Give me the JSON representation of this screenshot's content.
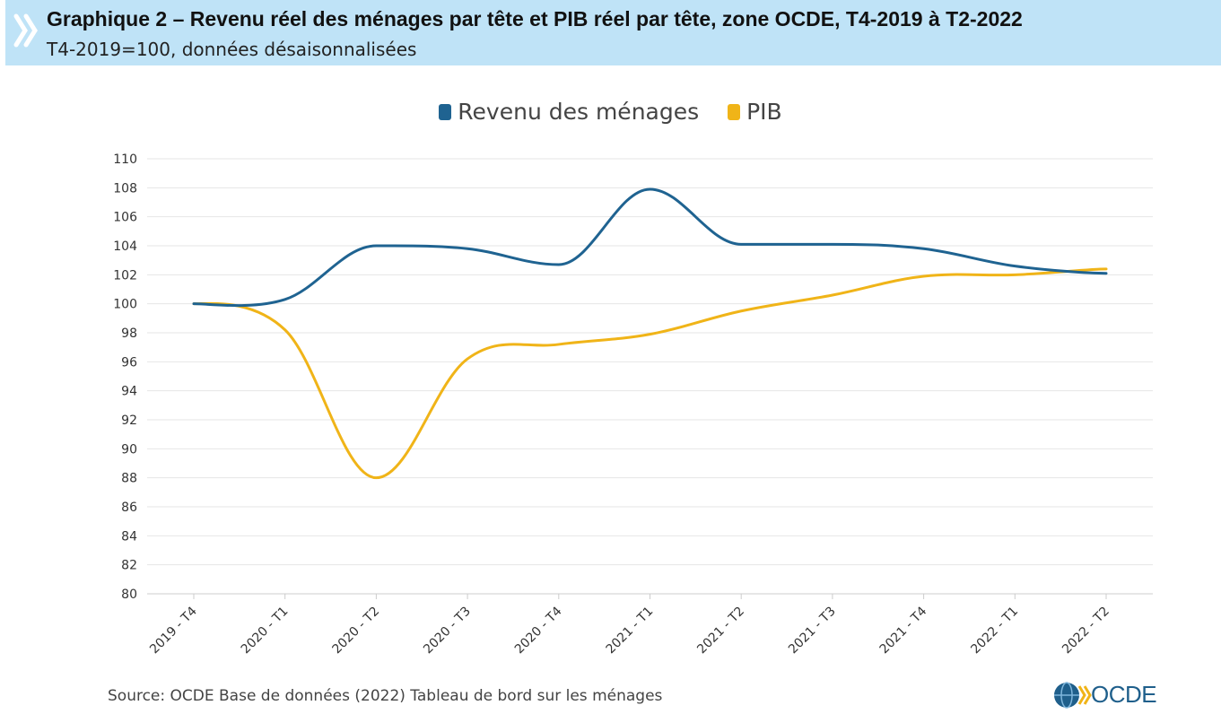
{
  "header": {
    "title": "Graphique 2 – Revenu réel des ménages par tête et PIB réel par tête, zone OCDE, T4-2019 à T2-2022",
    "subtitle": "T4-2019=100, données désaisonnalisées"
  },
  "source": "Source: OCDE Base de données (2022) Tableau de bord sur les ménages",
  "logo": {
    "text": "OCDE",
    "icon": "globe-icon"
  },
  "colors": {
    "header_bg": "#bfe3f7",
    "revenu": "#1f6391",
    "pib": "#f0b418",
    "grid": "#e6e6e6"
  },
  "chart_data": {
    "type": "line",
    "title": "",
    "xlabel": "",
    "ylabel": "",
    "ylim": [
      80,
      110
    ],
    "yticks": [
      80,
      82,
      84,
      86,
      88,
      90,
      92,
      94,
      96,
      98,
      100,
      102,
      104,
      106,
      108,
      110
    ],
    "grid": true,
    "legend_position": "top-center",
    "categories": [
      "2019 - T4",
      "2020 - T1",
      "2020 - T2",
      "2020 - T3",
      "2020 - T4",
      "2021 - T1",
      "2021 - T2",
      "2021 - T3",
      "2021 - T4",
      "2022 - T1",
      "2022 - T2"
    ],
    "series": [
      {
        "name": "Revenu des ménages",
        "color": "#1f6391",
        "values": [
          100.0,
          100.3,
          104.0,
          103.8,
          102.7,
          107.9,
          104.1,
          104.1,
          103.8,
          102.6,
          102.1
        ]
      },
      {
        "name": "PIB",
        "color": "#f0b418",
        "values": [
          100.0,
          98.2,
          88.0,
          96.2,
          97.2,
          97.9,
          99.5,
          100.6,
          101.9,
          102.0,
          102.4
        ]
      }
    ]
  }
}
